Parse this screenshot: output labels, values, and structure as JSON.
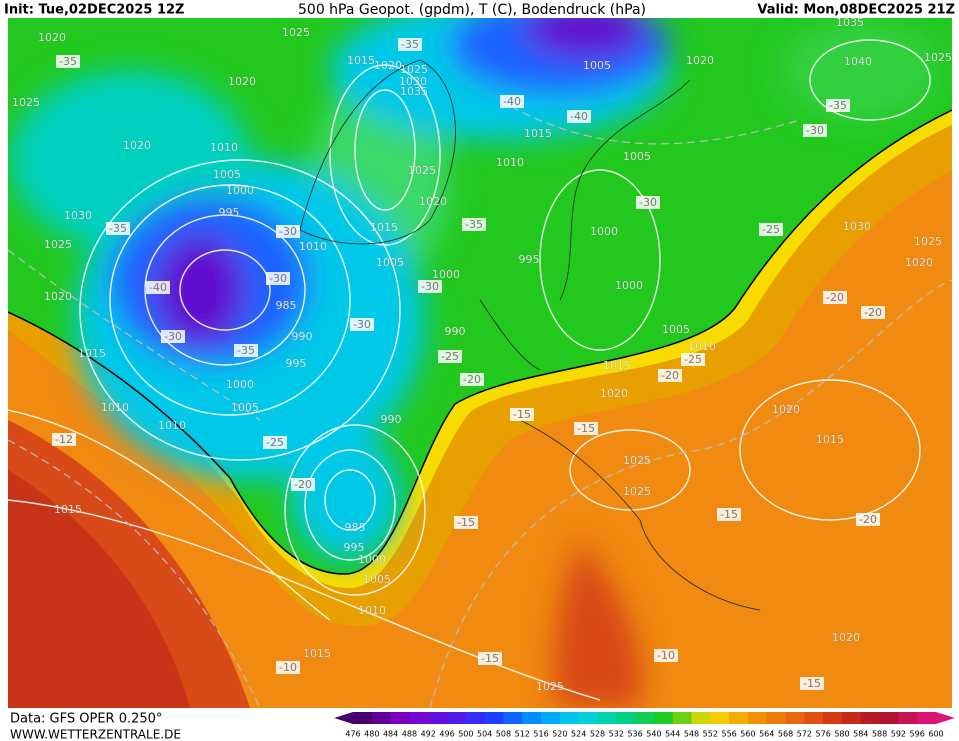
{
  "header": {
    "init": "Init: Tue,02DEC2025 12Z",
    "title": "500 hPa Geopot. (gpdm), T (C), Bodendruck (hPa)",
    "valid": "Valid: Mon,08DEC2025 21Z"
  },
  "footer": {
    "data": "Data: GFS OPER 0.250°",
    "site": "WWW.WETTERZENTRALE.DE"
  },
  "isobar_labels": [
    "1020",
    "1025",
    "1015",
    "1020",
    "1025",
    "1030",
    "1035",
    "1025",
    "1020",
    "1020",
    "1010",
    "1005",
    "1000",
    "995",
    "1030",
    "1025",
    "1020",
    "1015",
    "1010",
    "1010",
    "1005",
    "1000",
    "995",
    "990",
    "985",
    "1010",
    "1015",
    "1005",
    "1000",
    "1025",
    "1020",
    "995",
    "990",
    "990",
    "1010",
    "1015",
    "1005",
    "1020",
    "1035",
    "1040",
    "1025",
    "1005",
    "1000",
    "1000",
    "1005",
    "1010",
    "1015",
    "1020",
    "1030",
    "1025",
    "1020",
    "1020",
    "1015",
    "1025",
    "1025",
    "1015",
    "985",
    "995",
    "1000",
    "1005",
    "1010",
    "1015",
    "1025",
    "1020"
  ],
  "temperature_labels": [
    "-35",
    "-35",
    "-40",
    "-40",
    "-30",
    "-35",
    "-35",
    "-30",
    "-30",
    "-30",
    "-30",
    "-35",
    "-30",
    "-35",
    "-40",
    "-30",
    "-25",
    "-20",
    "-20",
    "-25",
    "-20",
    "-25",
    "-20",
    "-15",
    "-15",
    "-25",
    "-20",
    "-12",
    "-15",
    "-15",
    "-20",
    "-10",
    "-15",
    "-10",
    "-15"
  ],
  "colorbar": {
    "ticks": [
      476,
      480,
      484,
      488,
      492,
      496,
      500,
      504,
      508,
      512,
      516,
      520,
      524,
      528,
      532,
      536,
      540,
      544,
      548,
      552,
      556,
      560,
      564,
      568,
      572,
      576,
      580,
      584,
      588,
      592,
      596,
      600
    ]
  }
}
